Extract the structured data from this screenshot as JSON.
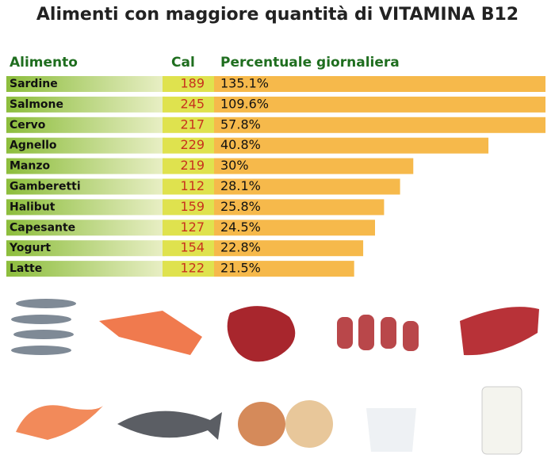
{
  "chart_data": {
    "type": "bar",
    "title": "Alimenti con maggiore quantità di VITAMINA B12",
    "headers": [
      "Alimento",
      "Cal",
      "Percentuale giornaliera"
    ],
    "categories": [
      "Sardine",
      "Salmone",
      "Cervo",
      "Agnello",
      "Manzo",
      "Gamberetti",
      "Halibut",
      "Capesante",
      "Yogurt",
      "Latte"
    ],
    "calories": [
      189,
      245,
      217,
      229,
      219,
      112,
      159,
      127,
      154,
      122
    ],
    "values": [
      135.1,
      109.6,
      57.8,
      40.8,
      30,
      28.1,
      25.8,
      24.5,
      22.8,
      21.5
    ],
    "value_labels": [
      "135.1%",
      "109.6%",
      "57.8%",
      "40.8%",
      "30%",
      "28.1%",
      "25.8%",
      "24.5%",
      "22.8%",
      "21.5%"
    ],
    "xlim": [
      0,
      49
    ],
    "color": "#f6b94b"
  }
}
